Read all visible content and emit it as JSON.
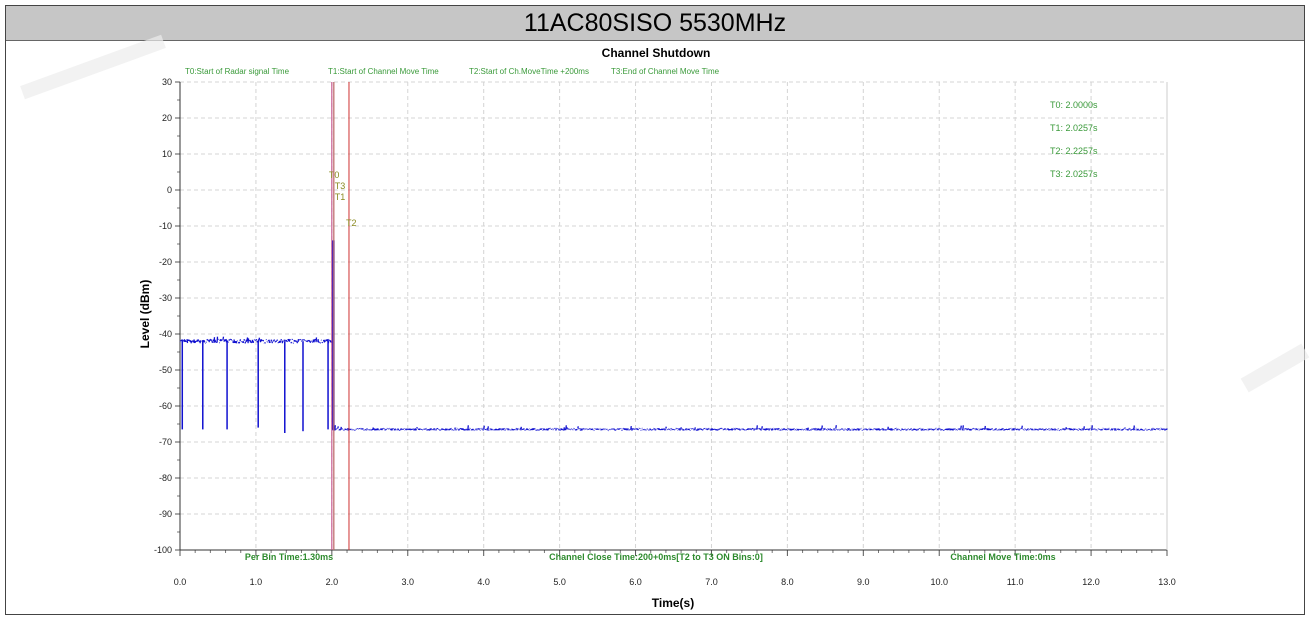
{
  "header": {
    "title": "11AC80SISO 5530MHz"
  },
  "chart_data": {
    "type": "line",
    "title": "Channel Shutdown",
    "xlabel": "Time(s)",
    "ylabel": "Level (dBm)",
    "xlim": [
      0,
      13
    ],
    "ylim": [
      -100,
      30
    ],
    "x_ticks": [
      "0.0",
      "1.0",
      "2.0",
      "3.0",
      "4.0",
      "5.0",
      "6.0",
      "7.0",
      "8.0",
      "9.0",
      "10.0",
      "11.0",
      "12.0",
      "13.0"
    ],
    "y_ticks": [
      "30",
      "20",
      "10",
      "0",
      "-10",
      "-20",
      "-30",
      "-40",
      "-50",
      "-60",
      "-70",
      "-80",
      "-90",
      "-100"
    ],
    "grid": true,
    "series": [
      {
        "name": "",
        "color": "#1010d0",
        "segments": [
          {
            "x_start": 0.0,
            "x_end": 2.0,
            "baseline": -42
          },
          {
            "x_start": 2.0,
            "x_end": 13.0,
            "baseline": -66.5
          }
        ],
        "dips": [
          {
            "x": 0.03,
            "y": -66.5
          },
          {
            "x": 0.3,
            "y": -66.5
          },
          {
            "x": 0.62,
            "y": -66.5
          },
          {
            "x": 1.03,
            "y": -66
          },
          {
            "x": 1.38,
            "y": -67.5
          },
          {
            "x": 1.62,
            "y": -67
          },
          {
            "x": 1.95,
            "y": -66.5
          }
        ],
        "spike": {
          "x": 2.02,
          "y": -14
        }
      }
    ],
    "markers": [
      {
        "label": "T0",
        "x": 2.0,
        "color": "#c04080"
      },
      {
        "label": "T1",
        "x": 2.0257,
        "color": "#b01010"
      },
      {
        "label": "T2",
        "x": 2.2257,
        "color": "#d03030"
      },
      {
        "label": "T3",
        "x": 2.0257,
        "color": "#c08080"
      }
    ],
    "legend_top": [
      "T0:Start of Radar signal Time",
      "T1:Start of Channel Move Time",
      "T2:Start of Ch.MoveTime +200ms",
      "T3:End of Channel Move Time"
    ],
    "marker_values": [
      "T0: 2.0000s",
      "T1: 2.0257s",
      "T2: 2.2257s",
      "T3: 2.0257s"
    ],
    "bottom_notes": [
      "Per Bin Time:1.30ms",
      "Channel Close Time:200+0ms[T2 to T3 ON Bins:0]",
      "Channel Move Time:0ms"
    ],
    "colors": {
      "legend_text": "#3a9a3a",
      "note_text": "#2e8b2e",
      "marker_label": "#8a8a20"
    }
  }
}
